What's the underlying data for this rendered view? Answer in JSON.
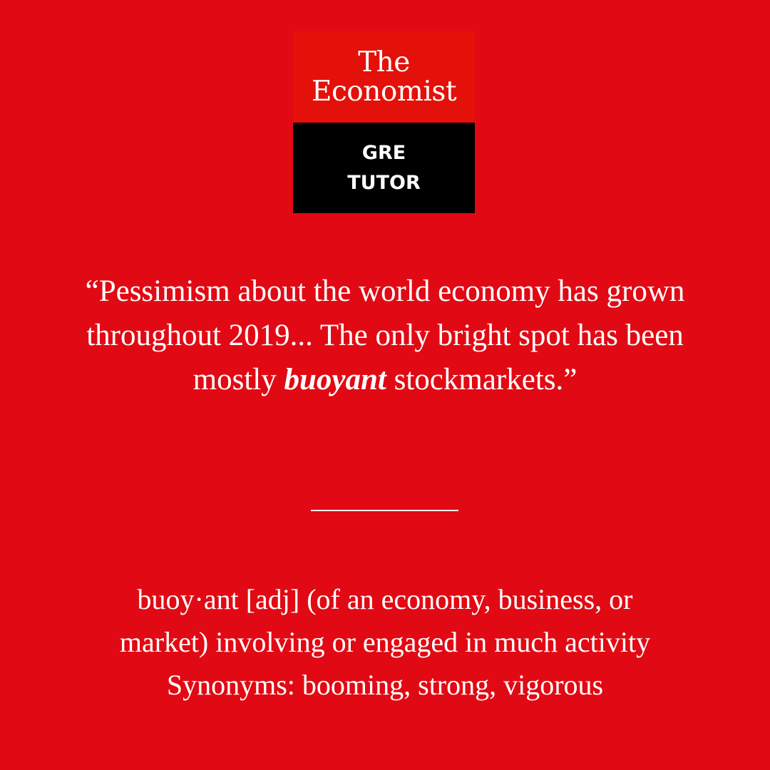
{
  "brand": {
    "title_line1": "The",
    "title_line2": "Economist",
    "subtitle_line1": "GRE",
    "subtitle_line2": "TUTOR"
  },
  "quote": {
    "before": "“Pessimism about the world economy has grown throughout 2019... The only bright spot has been mostly ",
    "highlight": "buoyant",
    "after": " stockmarkets.”"
  },
  "definition": {
    "line1": "buoy·ant [adj] (of an economy, business, or",
    "line2": "market) involving or engaged in much activity",
    "synonyms": "Synonyms: booming, strong, vigorous"
  },
  "colors": {
    "background": "#e10a14",
    "logo_red": "#e31109",
    "logo_black": "#000000",
    "text": "#ffffff"
  }
}
